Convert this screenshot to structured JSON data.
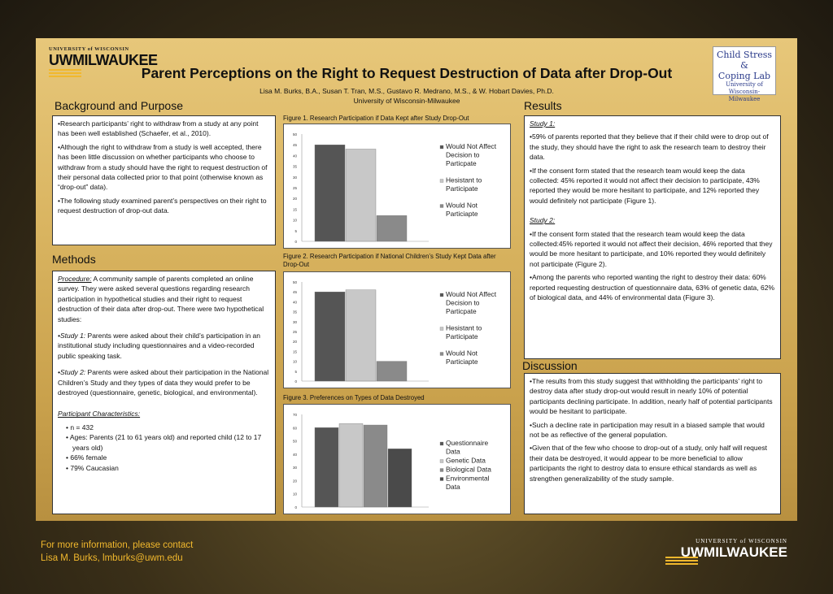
{
  "header": {
    "university_small": "UNIVERSITY of WISCONSIN",
    "university_big": "UWMILWAUKEE",
    "title": "Parent Perceptions on the Right to Request Destruction of Data after Drop-Out",
    "authors": "Lisa M. Burks, B.A., Susan T. Tran, M.S., Gustavo R. Medrano, M.S., & W. Hobart Davies, Ph.D.",
    "affiliation": "University of Wisconsin-Milwaukee",
    "lab_logo": {
      "line1": "Child Stress &",
      "line2": "Coping Lab",
      "line3": "University of",
      "line4": "Wisconsin-Milwaukee"
    }
  },
  "background": {
    "title": "Background and Purpose",
    "p1": "•Research participants’ right to withdraw from a study at any point has been well established (Schaefer, et al., 2010).",
    "p2": "•Although the right to withdraw from a study is well accepted, there has been little discussion on whether participants who choose to withdraw from a study should have the right to request destruction of their personal data collected prior to that point (otherwise known as “drop-out” data).",
    "p3": "•The following study examined parent’s perspectives on their right to request destruction of drop-out data."
  },
  "methods": {
    "title": "Methods",
    "procedure_label": "Procedure:",
    "procedure_text": " A community sample of parents completed an online survey. They were asked several questions regarding research participation in hypothetical studies and their right to request destruction of their data after drop-out. There were two hypothetical studies:",
    "study1_label": "•Study 1:",
    "study1_text": " Parents were asked about their child’s participation in an institutional study including questionnaires and a video-recorded public speaking task.",
    "study2_label": "•Study 2:",
    "study2_text": " Parents were asked about their participation in the National Children’s Study and they types of data they would prefer to be destroyed (questionnaire, genetic, biological, and environmental).",
    "participants_label": "Participant Characteristics:",
    "participants": [
      "n = 432",
      "Ages: Parents (21 to 61 years old) and reported child (12 to 17 years old)",
      "66% female",
      "79% Caucasian"
    ]
  },
  "figures": {
    "fig1_caption": "Figure 1. Research Participation if Data Kept after Study Drop-Out",
    "fig2_caption": "Figure 2. Research Participation if National Children’s Study Kept Data after Drop-Out",
    "fig3_caption": "Figure 3. Preferences on Types of Data Destroyed"
  },
  "results": {
    "title": "Results",
    "study1_label": "Study 1:",
    "s1p1": "•59% of parents reported that they believe that if their child were to drop out of the study, they should have the right to ask the research team to destroy their data.",
    "s1p2": "•If the consent form stated that the research team would keep the data collected: 45% reported it would not affect their decision to participate, 43% reported  they would be more hesitant to participate, and 12% reported they would definitely not participate (Figure 1).",
    "study2_label": "Study 2:",
    "s2p1": "•If the consent form stated that the research team would keep the data collected:45% reported it would not affect their decision, 46% reported that they would be more hesitant to participate, and 10% reported they would definitely not participate (Figure 2).",
    "s2p2": "•Among the parents who reported wanting the right to destroy their data: 60% reported requesting destruction of questionnaire data, 63% of genetic data, 62% of biological data, and 44% of environmental data (Figure 3)."
  },
  "discussion": {
    "title": "Discussion",
    "p1": "•The results from this study suggest that withholding the participants’ right to destroy data after study drop-out would result in nearly 10% of potential participants declining participate. In addition, nearly half of potential participants would be hesitant to participate.",
    "p2": "•Such a decline rate in participation may result in a biased sample that would not be as reflective of the general population.",
    "p3": "•Given that of the few who choose to drop-out of a study, only half will request their data be destroyed, it would appear to be more beneficial to allow participants the right to destroy data to ensure ethical standards as well as strengthen generalizability of the study sample."
  },
  "footer": {
    "line1": "For more information, please contact",
    "line2": "Lisa M. Burks, lmburks@uwm.edu",
    "university_small": "UNIVERSITY of WISCONSIN",
    "university_big": "UWMILWAUKEE"
  },
  "colors": {
    "dark_gray": "#555555",
    "light_gray": "#c8c8c8",
    "medium_gray": "#8a8a8a",
    "gold": "#f1b82d"
  },
  "chart_data": [
    {
      "type": "bar",
      "title": "Figure 1. Research Participation if Data Kept after Study Drop-Out",
      "series": [
        {
          "name": "Would Not Affect Decision to Particpate",
          "value": 45
        },
        {
          "name": "Hesistant to Participate",
          "value": 43
        },
        {
          "name": "Would Not Particiapte",
          "value": 12
        }
      ],
      "yticks": [
        "0",
        "5",
        "10",
        "15",
        "20",
        "25",
        "30",
        "35",
        "40",
        "45",
        "50"
      ],
      "ylim": [
        0,
        50
      ],
      "legend": "right"
    },
    {
      "type": "bar",
      "title": "Figure 2. Research Participation if National Children’s Study Kept Data after Drop-Out",
      "series": [
        {
          "name": "Would Not Affect Decision to Particpate",
          "value": 45
        },
        {
          "name": "Hesistant to Participate",
          "value": 46
        },
        {
          "name": "Would Not Particiapte",
          "value": 10
        }
      ],
      "yticks": [
        "0",
        "5",
        "10",
        "15",
        "20",
        "25",
        "30",
        "35",
        "40",
        "45",
        "50"
      ],
      "ylim": [
        0,
        50
      ],
      "legend": "right"
    },
    {
      "type": "bar",
      "title": "Figure 3. Preferences on Types of Data Destroyed",
      "series": [
        {
          "name": "Questionnaire Data",
          "value": 60
        },
        {
          "name": "Genetic Data",
          "value": 63
        },
        {
          "name": "Biological Data",
          "value": 62
        },
        {
          "name": "Environmental Data",
          "value": 44
        }
      ],
      "yticks": [
        "0",
        "10",
        "20",
        "30",
        "40",
        "50",
        "60",
        "70"
      ],
      "ylim": [
        0,
        70
      ],
      "legend": "right"
    }
  ]
}
